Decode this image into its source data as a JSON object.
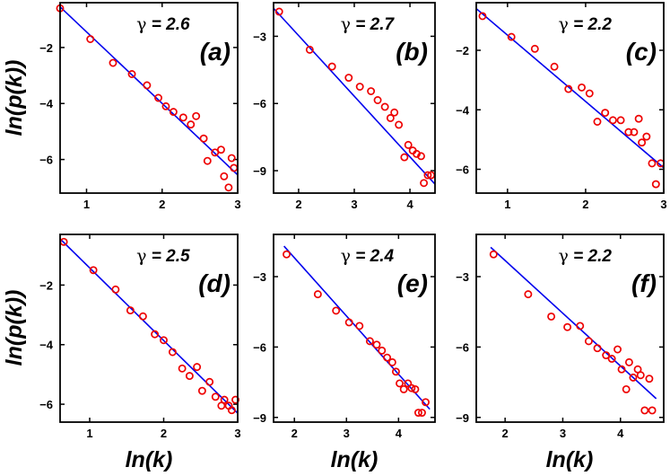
{
  "axes": {
    "xlabel": "ln(k)",
    "ylabel": "ln(p(k))"
  },
  "colors": {
    "fit_line": "#0000ee",
    "points": "#ee0000",
    "frame": "#000000"
  },
  "chart_data": [
    {
      "type": "scatter",
      "panel": "(a)",
      "gamma_label": "γ = 2.6",
      "xlim": [
        0.65,
        3.0
      ],
      "ylim": [
        -7.2,
        -0.4
      ],
      "xticks": [
        1,
        2,
        3
      ],
      "yticks": [
        -2,
        -4,
        -6
      ],
      "fit": {
        "x": [
          0.65,
          3.0
        ],
        "y": [
          -0.55,
          -6.55
        ]
      },
      "points": [
        [
          0.65,
          -0.6
        ],
        [
          1.05,
          -1.7
        ],
        [
          1.35,
          -2.55
        ],
        [
          1.6,
          -2.95
        ],
        [
          1.8,
          -3.35
        ],
        [
          1.95,
          -3.8
        ],
        [
          2.05,
          -4.1
        ],
        [
          2.15,
          -4.3
        ],
        [
          2.28,
          -4.5
        ],
        [
          2.38,
          -4.75
        ],
        [
          2.45,
          -4.45
        ],
        [
          2.55,
          -5.25
        ],
        [
          2.6,
          -6.05
        ],
        [
          2.7,
          -5.75
        ],
        [
          2.78,
          -5.65
        ],
        [
          2.82,
          -6.6
        ],
        [
          2.88,
          -7.0
        ],
        [
          2.92,
          -5.95
        ],
        [
          2.95,
          -6.3
        ]
      ]
    },
    {
      "type": "scatter",
      "panel": "(b)",
      "gamma_label": "γ = 2.7",
      "xlim": [
        1.55,
        4.45
      ],
      "ylim": [
        -10.0,
        -1.5
      ],
      "xticks": [
        2,
        3,
        4
      ],
      "yticks": [
        -3,
        -6,
        -9
      ],
      "fit": {
        "x": [
          1.55,
          4.45
        ],
        "y": [
          -1.75,
          -9.6
        ]
      },
      "points": [
        [
          1.65,
          -1.9
        ],
        [
          2.2,
          -3.6
        ],
        [
          2.6,
          -4.35
        ],
        [
          2.9,
          -4.85
        ],
        [
          3.1,
          -5.25
        ],
        [
          3.3,
          -5.45
        ],
        [
          3.42,
          -5.85
        ],
        [
          3.55,
          -6.15
        ],
        [
          3.65,
          -6.65
        ],
        [
          3.72,
          -6.4
        ],
        [
          3.8,
          -6.95
        ],
        [
          3.9,
          -8.4
        ],
        [
          3.97,
          -7.85
        ],
        [
          4.05,
          -8.1
        ],
        [
          4.12,
          -8.25
        ],
        [
          4.2,
          -8.35
        ],
        [
          4.25,
          -9.55
        ],
        [
          4.32,
          -9.2
        ],
        [
          4.38,
          -9.2
        ]
      ]
    },
    {
      "type": "scatter",
      "panel": "(c)",
      "gamma_label": "γ = 2.2",
      "xlim": [
        0.6,
        3.0
      ],
      "ylim": [
        -6.8,
        -0.4
      ],
      "xticks": [
        1,
        2,
        3
      ],
      "yticks": [
        -2,
        -4,
        -6
      ],
      "fit": {
        "x": [
          0.6,
          3.0
        ],
        "y": [
          -0.6,
          -5.95
        ]
      },
      "points": [
        [
          0.68,
          -0.85
        ],
        [
          1.05,
          -1.55
        ],
        [
          1.35,
          -1.95
        ],
        [
          1.6,
          -2.55
        ],
        [
          1.78,
          -3.3
        ],
        [
          1.95,
          -3.25
        ],
        [
          2.05,
          -3.45
        ],
        [
          2.15,
          -4.4
        ],
        [
          2.25,
          -4.1
        ],
        [
          2.35,
          -4.35
        ],
        [
          2.45,
          -4.35
        ],
        [
          2.55,
          -4.75
        ],
        [
          2.62,
          -4.75
        ],
        [
          2.68,
          -4.3
        ],
        [
          2.72,
          -5.1
        ],
        [
          2.78,
          -4.9
        ],
        [
          2.85,
          -5.8
        ],
        [
          2.9,
          -6.5
        ],
        [
          2.96,
          -5.8
        ]
      ]
    },
    {
      "type": "scatter",
      "panel": "(d)",
      "gamma_label": "γ = 2.5",
      "xlim": [
        0.6,
        3.0
      ],
      "ylim": [
        -6.6,
        -0.3
      ],
      "xticks": [
        1,
        2,
        3
      ],
      "yticks": [
        -2,
        -4,
        -6
      ],
      "fit": {
        "x": [
          0.6,
          3.0
        ],
        "y": [
          -0.45,
          -6.3
        ]
      },
      "points": [
        [
          0.65,
          -0.55
        ],
        [
          1.05,
          -1.5
        ],
        [
          1.35,
          -2.15
        ],
        [
          1.55,
          -2.85
        ],
        [
          1.72,
          -3.05
        ],
        [
          1.88,
          -3.65
        ],
        [
          2.0,
          -3.85
        ],
        [
          2.12,
          -4.25
        ],
        [
          2.25,
          -4.8
        ],
        [
          2.35,
          -5.05
        ],
        [
          2.45,
          -4.75
        ],
        [
          2.52,
          -5.55
        ],
        [
          2.62,
          -5.25
        ],
        [
          2.7,
          -5.75
        ],
        [
          2.78,
          -6.05
        ],
        [
          2.82,
          -5.85
        ],
        [
          2.88,
          -6.05
        ],
        [
          2.92,
          -6.2
        ],
        [
          2.97,
          -5.85
        ]
      ]
    },
    {
      "type": "scatter",
      "panel": "(e)",
      "gamma_label": "γ = 2.4",
      "xlim": [
        1.6,
        4.7
      ],
      "ylim": [
        -9.2,
        -1.2
      ],
      "xticks": [
        2,
        3,
        4
      ],
      "yticks": [
        -3,
        -6,
        -9
      ],
      "fit": {
        "x": [
          1.8,
          4.6
        ],
        "y": [
          -1.7,
          -8.65
        ]
      },
      "points": [
        [
          1.85,
          -2.05
        ],
        [
          2.45,
          -3.75
        ],
        [
          2.8,
          -4.45
        ],
        [
          3.05,
          -4.95
        ],
        [
          3.25,
          -5.1
        ],
        [
          3.45,
          -5.75
        ],
        [
          3.58,
          -5.9
        ],
        [
          3.68,
          -6.15
        ],
        [
          3.78,
          -6.45
        ],
        [
          3.88,
          -6.65
        ],
        [
          3.95,
          -7.05
        ],
        [
          4.02,
          -7.55
        ],
        [
          4.1,
          -7.8
        ],
        [
          4.18,
          -7.55
        ],
        [
          4.25,
          -7.75
        ],
        [
          4.32,
          -7.8
        ],
        [
          4.38,
          -8.8
        ],
        [
          4.45,
          -8.8
        ],
        [
          4.52,
          -8.35
        ]
      ]
    },
    {
      "type": "scatter",
      "panel": "(f)",
      "gamma_label": "γ = 2.2",
      "xlim": [
        1.5,
        4.75
      ],
      "ylim": [
        -9.2,
        -1.2
      ],
      "xticks": [
        2,
        3,
        4
      ],
      "yticks": [
        -3,
        -6,
        -9
      ],
      "fit": {
        "x": [
          1.75,
          4.62
        ],
        "y": [
          -1.75,
          -8.2
        ]
      },
      "points": [
        [
          1.8,
          -2.05
        ],
        [
          2.4,
          -3.75
        ],
        [
          2.8,
          -4.7
        ],
        [
          3.08,
          -5.15
        ],
        [
          3.3,
          -5.1
        ],
        [
          3.45,
          -5.75
        ],
        [
          3.6,
          -6.05
        ],
        [
          3.75,
          -6.35
        ],
        [
          3.85,
          -6.5
        ],
        [
          3.95,
          -6.1
        ],
        [
          4.02,
          -6.95
        ],
        [
          4.1,
          -7.8
        ],
        [
          4.15,
          -6.65
        ],
        [
          4.22,
          -7.3
        ],
        [
          4.3,
          -6.95
        ],
        [
          4.35,
          -7.2
        ],
        [
          4.42,
          -8.7
        ],
        [
          4.5,
          -7.35
        ],
        [
          4.55,
          -8.7
        ]
      ]
    }
  ]
}
